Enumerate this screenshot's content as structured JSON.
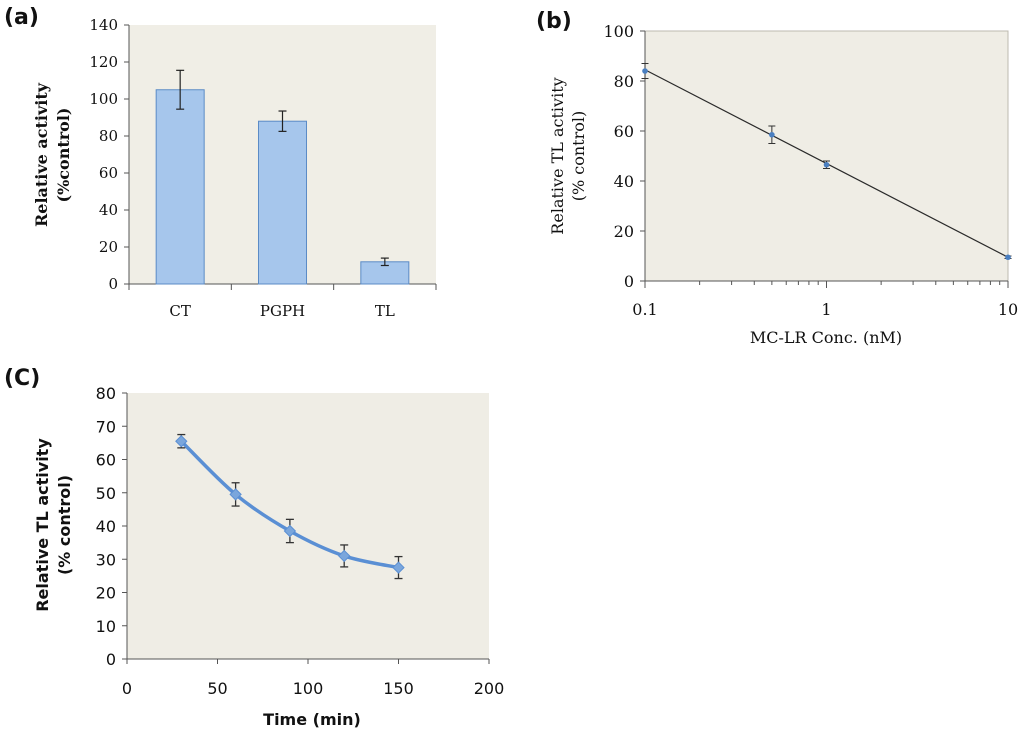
{
  "colors": {
    "plot_bg_a": "#f0eee6",
    "plot_bg_b": "#efede5",
    "plot_bg_c": "#efede5",
    "bar_fill": "#a6c6ec",
    "bar_stroke": "#5b8bc6",
    "line_b": "#2a2a2a",
    "marker_b": "#4a7fc1",
    "line_c": "#5a8fd4",
    "marker_c": "#7aa6dc",
    "axis": "#555555"
  },
  "chart_data": [
    {
      "id": "a",
      "panel_label": "(a)",
      "type": "bar",
      "categories": [
        "CT",
        "PGPH",
        "TL"
      ],
      "values": [
        105,
        88,
        12
      ],
      "errors": [
        10.5,
        5.5,
        2
      ],
      "ylabel_line1": "Relative activity",
      "ylabel_line2": "(%control)",
      "ylim": [
        0,
        140
      ],
      "yticks": [
        0,
        20,
        40,
        60,
        80,
        100,
        120,
        140
      ],
      "ytick_labels": [
        "0",
        "20",
        "40",
        "60",
        "80",
        "100",
        "120",
        "140"
      ],
      "grid": false
    },
    {
      "id": "b",
      "panel_label": "(b)",
      "type": "line",
      "xscale": "log",
      "x": [
        0.1,
        0.5,
        1,
        10
      ],
      "y": [
        84,
        58.5,
        46.5,
        9.5
      ],
      "errors": [
        3,
        3.5,
        1.5,
        0.5
      ],
      "xlabel": "MC-LR Conc. (nM)",
      "ylabel_line1": "Relative TL activity",
      "ylabel_line2": "(% control)",
      "xlim": [
        0.1,
        10
      ],
      "ylim": [
        0,
        100
      ],
      "xticks": [
        0.1,
        1,
        10
      ],
      "xtick_labels": [
        "0.1",
        "1",
        "10"
      ],
      "yticks": [
        0,
        20,
        40,
        60,
        80,
        100
      ],
      "ytick_labels": [
        "0",
        "20",
        "40",
        "60",
        "80",
        "100"
      ],
      "fit_line": {
        "x_start": 0.1,
        "y_start": 84.5,
        "x_end": 10,
        "y_end": 9.5
      },
      "grid": false
    },
    {
      "id": "c",
      "panel_label": "(C)",
      "type": "line",
      "x": [
        30,
        60,
        90,
        120,
        150
      ],
      "y": [
        65.5,
        49.5,
        38.5,
        31,
        27.5
      ],
      "errors": [
        2,
        3.5,
        3.5,
        3.3,
        3.3
      ],
      "xlabel": "Time (min)",
      "ylabel_line1": "Relative TL activity",
      "ylabel_line2": "(% control)",
      "xlim": [
        0,
        200
      ],
      "ylim": [
        0,
        80
      ],
      "xticks": [
        0,
        50,
        100,
        150,
        200
      ],
      "xtick_labels": [
        "0",
        "50",
        "100",
        "150",
        "200"
      ],
      "yticks": [
        0,
        10,
        20,
        30,
        40,
        50,
        60,
        70,
        80
      ],
      "ytick_labels": [
        "0",
        "10",
        "20",
        "30",
        "40",
        "50",
        "60",
        "70",
        "80"
      ],
      "smooth": true,
      "grid": false
    }
  ]
}
